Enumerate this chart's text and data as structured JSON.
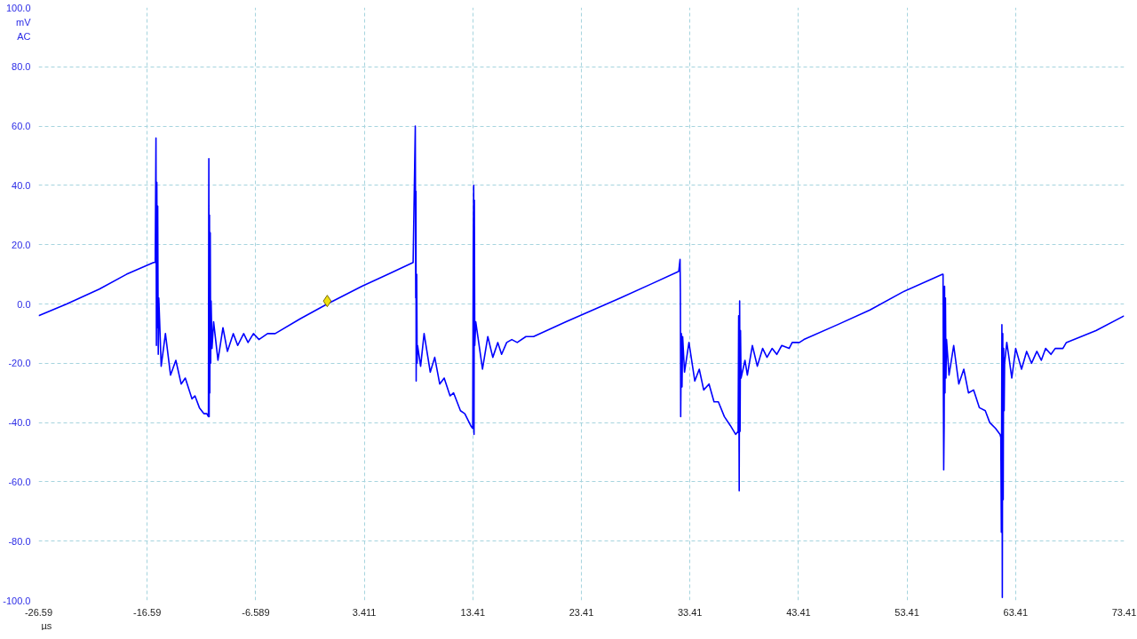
{
  "chart_data": {
    "type": "line",
    "xlabel": "µs",
    "ylabel": "mV",
    "annotations": [
      "AC"
    ],
    "xlim": [
      -26.59,
      73.41
    ],
    "ylim": [
      -100,
      100
    ],
    "xticks": [
      -26.59,
      -16.59,
      -6.589,
      3.411,
      13.41,
      23.41,
      33.41,
      43.41,
      53.41,
      63.41,
      73.41
    ],
    "yticks": [
      {
        "value": 100,
        "label": "100.0"
      },
      {
        "value": 80,
        "label": "80.0"
      },
      {
        "value": 60,
        "label": "60.0"
      },
      {
        "value": 40,
        "label": "40.0"
      },
      {
        "value": 20,
        "label": "20.0"
      },
      {
        "value": 0,
        "label": "0.0"
      },
      {
        "value": -20,
        "label": "-20.0"
      },
      {
        "value": -40,
        "label": "-40.0"
      },
      {
        "value": -60,
        "label": "-60.0"
      },
      {
        "value": -80,
        "label": "-80.0"
      },
      {
        "value": -100,
        "label": "-100.0"
      }
    ],
    "grid": true,
    "line_style": "solid",
    "series": [
      {
        "color": "#0000ff",
        "x": [
          -26.59,
          -24.0,
          -21.0,
          -18.5,
          -16.0,
          -15.85,
          -15.78,
          -15.74,
          -15.7,
          -15.66,
          -15.62,
          -15.57,
          -15.52,
          -15.45,
          -15.3,
          -14.91,
          -14.44,
          -13.95,
          -13.46,
          -13.08,
          -12.46,
          -12.19,
          -11.78,
          -11.37,
          -11.1,
          -10.95,
          -10.91,
          -10.88,
          -10.85,
          -10.82,
          -10.78,
          -10.74,
          -10.7,
          -10.62,
          -10.47,
          -10.07,
          -9.61,
          -9.2,
          -8.66,
          -8.25,
          -7.7,
          -7.3,
          -6.8,
          -6.3,
          -5.5,
          -4.8,
          -2.5,
          0.0,
          3.2,
          5.6,
          7.91,
          8.11,
          8.15,
          8.17,
          8.19,
          8.24,
          8.28,
          8.32,
          8.6,
          8.92,
          9.49,
          9.9,
          10.36,
          10.77,
          11.31,
          11.64,
          12.27,
          12.67,
          13.21,
          13.4,
          13.45,
          13.49,
          13.52,
          13.55,
          13.59,
          13.68,
          14.3,
          14.79,
          15.25,
          15.71,
          16.06,
          16.53,
          17.0,
          17.5,
          18.3,
          19.0,
          22.0,
          27.0,
          30.0,
          32.38,
          32.5,
          32.53,
          32.56,
          32.62,
          32.68,
          32.74,
          32.91,
          33.32,
          33.86,
          34.27,
          34.68,
          35.17,
          35.63,
          36.03,
          36.58,
          37.13,
          37.62,
          37.85,
          37.9,
          37.95,
          37.99,
          38.03,
          38.07,
          38.12,
          38.48,
          38.7,
          39.16,
          39.62,
          40.11,
          40.51,
          40.98,
          41.41,
          41.87,
          42.55,
          42.83,
          43.5,
          43.91,
          47.0,
          50.0,
          53.0,
          56.68,
          56.73,
          56.76,
          56.79,
          56.83,
          56.87,
          56.91,
          56.95,
          57.0,
          57.05,
          57.28,
          57.71,
          58.18,
          58.64,
          59.07,
          59.54,
          60.08,
          60.62,
          61.03,
          61.57,
          61.98,
          62.05,
          62.1,
          62.15,
          62.19,
          62.23,
          62.27,
          62.31,
          62.36,
          62.4,
          62.6,
          62.8,
          63.06,
          63.42,
          63.96,
          64.43,
          64.88,
          65.37,
          65.78,
          66.18,
          66.67,
          67.06,
          67.77,
          68.09,
          70.82,
          73.41
        ],
        "values": [
          -4,
          0,
          5,
          10,
          14,
          14,
          56,
          -14,
          41,
          -8,
          33,
          -17,
          2,
          -5,
          -21,
          -10,
          -24,
          -19,
          -27,
          -25,
          -32,
          -31,
          -35,
          -37,
          -37,
          -38,
          49,
          -38,
          30,
          -30,
          24,
          -20,
          1,
          -15,
          -6,
          -19,
          -8,
          -16,
          -10,
          -14,
          -10,
          -13,
          -10,
          -12,
          -10,
          -10,
          -5,
          0,
          6,
          10,
          14,
          60,
          2,
          38,
          -26,
          10,
          -20,
          -14,
          -21,
          -10,
          -23,
          -18,
          -27,
          -25,
          -31,
          -30,
          -36,
          -37,
          -41,
          -42,
          21,
          40,
          -44,
          35,
          -14,
          -6,
          -22,
          -11,
          -18,
          -13,
          -17,
          -13,
          -12,
          -13,
          -11,
          -11,
          -6,
          2,
          7,
          11,
          15,
          4,
          -38,
          -10,
          -28,
          -11,
          -23,
          -13,
          -26,
          -22,
          -29,
          -27,
          -33,
          -33,
          -38,
          -41,
          -44,
          -43,
          -4,
          -63,
          1,
          -43,
          -9,
          -25,
          -19,
          -24,
          -14,
          -21,
          -15,
          -18,
          -15,
          -17,
          -14,
          -15,
          -13,
          -13,
          -12,
          -7,
          -2,
          4,
          10,
          10,
          -31,
          -56,
          -41,
          6,
          -30,
          2,
          -25,
          -12,
          -24,
          -14,
          -27,
          -22,
          -30,
          -29,
          -35,
          -36,
          -40,
          -42,
          -44,
          -45,
          -77,
          -7,
          -99,
          -10,
          -66,
          -15,
          -36,
          -20,
          -13,
          -18,
          -25,
          -15,
          -22,
          -16,
          -20,
          -16,
          -19,
          -15,
          -17,
          -15,
          -15,
          -13,
          -9,
          -4
        ]
      },
      {
        "type": "scatter",
        "color": "#f0e010",
        "marker": "diamond",
        "x": [
          0
        ],
        "values": [
          1
        ]
      }
    ]
  }
}
